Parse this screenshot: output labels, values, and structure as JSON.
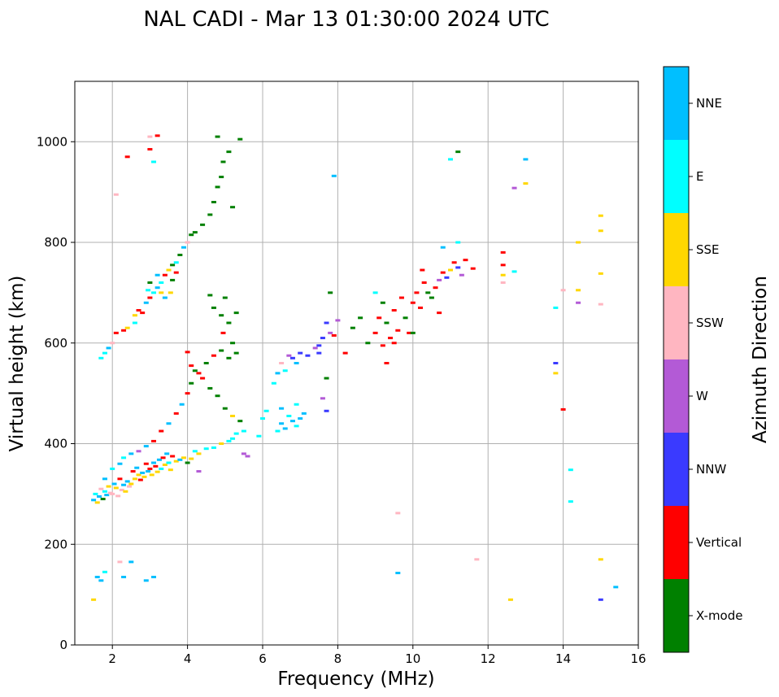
{
  "chart_data": {
    "type": "scatter",
    "title": "NAL CADI - Mar 13 01:30:00 2024 UTC",
    "xlabel": "Frequency (MHz)",
    "ylabel": "Virtual height (km)",
    "xlim": [
      1,
      16
    ],
    "ylim": [
      0,
      1120
    ],
    "xticks": [
      2,
      4,
      6,
      8,
      10,
      12,
      14,
      16
    ],
    "yticks": [
      0,
      200,
      400,
      600,
      800,
      1000
    ],
    "grid": true,
    "colorbar": {
      "label": "Azimuth Direction",
      "categories": [
        {
          "name": "X-mode",
          "color": "#008000"
        },
        {
          "name": "Vertical",
          "color": "#ff0000"
        },
        {
          "name": "NNW",
          "color": "#3a3aff"
        },
        {
          "name": "W",
          "color": "#b35ad6"
        },
        {
          "name": "SSW",
          "color": "#ffb6c1"
        },
        {
          "name": "SSE",
          "color": "#ffd700"
        },
        {
          "name": "E",
          "color": "#00ffff"
        },
        {
          "name": "NNE",
          "color": "#00bfff"
        }
      ]
    },
    "points": [
      [
        1.5,
        288,
        "NNE"
      ],
      [
        1.55,
        300,
        "E"
      ],
      [
        1.6,
        283,
        "SSE"
      ],
      [
        1.65,
        295,
        "NNE"
      ],
      [
        1.7,
        310,
        "SSW"
      ],
      [
        1.75,
        290,
        "X-mode"
      ],
      [
        1.8,
        305,
        "E"
      ],
      [
        1.85,
        298,
        "NNE"
      ],
      [
        1.9,
        315,
        "SSE"
      ],
      [
        1.95,
        302,
        "SSW"
      ],
      [
        2.0,
        300,
        "SSW"
      ],
      [
        2.05,
        320,
        "NNE"
      ],
      [
        2.1,
        312,
        "SSE"
      ],
      [
        2.15,
        296,
        "SSW"
      ],
      [
        2.2,
        330,
        "Vertical"
      ],
      [
        2.25,
        308,
        "SSW"
      ],
      [
        2.3,
        318,
        "NNE"
      ],
      [
        2.35,
        305,
        "SSE"
      ],
      [
        2.4,
        325,
        "NNE"
      ],
      [
        2.45,
        315,
        "SSW"
      ],
      [
        2.5,
        320,
        "SSE"
      ],
      [
        2.55,
        345,
        "Vertical"
      ],
      [
        2.6,
        330,
        "SSE"
      ],
      [
        2.65,
        352,
        "NNE"
      ],
      [
        2.7,
        338,
        "SSE"
      ],
      [
        2.75,
        328,
        "Vertical"
      ],
      [
        2.8,
        342,
        "NNE"
      ],
      [
        2.85,
        334,
        "SSE"
      ],
      [
        2.9,
        360,
        "Vertical"
      ],
      [
        2.95,
        345,
        "NNE"
      ],
      [
        3.0,
        350,
        "Vertical"
      ],
      [
        3.05,
        338,
        "SSE"
      ],
      [
        3.1,
        362,
        "NNE"
      ],
      [
        3.15,
        355,
        "Vertical"
      ],
      [
        3.2,
        344,
        "SSE"
      ],
      [
        3.25,
        368,
        "NNE"
      ],
      [
        3.3,
        350,
        "E"
      ],
      [
        3.35,
        372,
        "Vertical"
      ],
      [
        3.4,
        358,
        "SSE"
      ],
      [
        3.45,
        380,
        "NNE"
      ],
      [
        3.5,
        362,
        "E"
      ],
      [
        3.55,
        348,
        "SSE"
      ],
      [
        3.6,
        375,
        "Vertical"
      ],
      [
        3.7,
        365,
        "SSE"
      ],
      [
        3.8,
        368,
        "NNE"
      ],
      [
        3.9,
        372,
        "SSE"
      ],
      [
        4.0,
        362,
        "X-mode"
      ],
      [
        4.1,
        370,
        "SSE"
      ],
      [
        4.2,
        385,
        "E"
      ],
      [
        4.3,
        380,
        "SSE"
      ],
      [
        4.5,
        390,
        "E"
      ],
      [
        4.7,
        392,
        "E"
      ],
      [
        4.9,
        400,
        "SSE"
      ],
      [
        5.1,
        405,
        "E"
      ],
      [
        5.2,
        410,
        "E"
      ],
      [
        5.3,
        420,
        "E"
      ],
      [
        5.5,
        425,
        "E"
      ],
      [
        5.9,
        415,
        "E"
      ],
      [
        6.0,
        450,
        "E"
      ],
      [
        6.1,
        465,
        "E"
      ],
      [
        1.8,
        330,
        "NNE"
      ],
      [
        2.0,
        350,
        "E"
      ],
      [
        2.2,
        360,
        "NNE"
      ],
      [
        2.3,
        372,
        "E"
      ],
      [
        2.5,
        380,
        "NNE"
      ],
      [
        2.7,
        385,
        "W"
      ],
      [
        2.9,
        395,
        "NNE"
      ],
      [
        3.1,
        405,
        "Vertical"
      ],
      [
        3.3,
        425,
        "Vertical"
      ],
      [
        3.5,
        440,
        "NNE"
      ],
      [
        3.7,
        460,
        "Vertical"
      ],
      [
        3.85,
        478,
        "NNE"
      ],
      [
        4.0,
        500,
        "Vertical"
      ],
      [
        4.1,
        520,
        "X-mode"
      ],
      [
        4.3,
        540,
        "Vertical"
      ],
      [
        4.5,
        560,
        "X-mode"
      ],
      [
        4.7,
        575,
        "Vertical"
      ],
      [
        4.9,
        585,
        "X-mode"
      ],
      [
        5.1,
        570,
        "X-mode"
      ],
      [
        5.3,
        580,
        "X-mode"
      ],
      [
        4.0,
        582,
        "Vertical"
      ],
      [
        4.1,
        555,
        "Vertical"
      ],
      [
        4.2,
        545,
        "X-mode"
      ],
      [
        4.4,
        530,
        "Vertical"
      ],
      [
        4.6,
        510,
        "X-mode"
      ],
      [
        4.8,
        495,
        "X-mode"
      ],
      [
        5.0,
        470,
        "X-mode"
      ],
      [
        5.2,
        455,
        "SSE"
      ],
      [
        5.4,
        445,
        "X-mode"
      ],
      [
        4.9,
        655,
        "X-mode"
      ],
      [
        5.0,
        690,
        "X-mode"
      ],
      [
        5.1,
        640,
        "X-mode"
      ],
      [
        5.3,
        660,
        "X-mode"
      ],
      [
        4.95,
        620,
        "Vertical"
      ],
      [
        5.2,
        600,
        "X-mode"
      ],
      [
        4.6,
        695,
        "X-mode"
      ],
      [
        4.7,
        670,
        "X-mode"
      ],
      [
        5.5,
        380,
        "W"
      ],
      [
        5.6,
        375,
        "W"
      ],
      [
        4.3,
        345,
        "W"
      ],
      [
        1.7,
        570,
        "E"
      ],
      [
        1.8,
        580,
        "E"
      ],
      [
        1.9,
        590,
        "NNE"
      ],
      [
        2.0,
        600,
        "SSW"
      ],
      [
        2.1,
        620,
        "Vertical"
      ],
      [
        2.3,
        625,
        "Vertical"
      ],
      [
        2.4,
        630,
        "SSE"
      ],
      [
        2.6,
        640,
        "E"
      ],
      [
        2.8,
        660,
        "Vertical"
      ],
      [
        2.9,
        680,
        "NNE"
      ],
      [
        3.0,
        690,
        "Vertical"
      ],
      [
        3.1,
        700,
        "E"
      ],
      [
        3.2,
        710,
        "NNE"
      ],
      [
        3.3,
        720,
        "E"
      ],
      [
        3.4,
        735,
        "Vertical"
      ],
      [
        3.5,
        745,
        "SSE"
      ],
      [
        3.6,
        755,
        "X-mode"
      ],
      [
        3.7,
        760,
        "E"
      ],
      [
        3.8,
        775,
        "X-mode"
      ],
      [
        3.9,
        790,
        "NNE"
      ],
      [
        4.0,
        800,
        "SSW"
      ],
      [
        4.1,
        815,
        "X-mode"
      ],
      [
        4.2,
        820,
        "X-mode"
      ],
      [
        4.4,
        835,
        "X-mode"
      ],
      [
        4.6,
        855,
        "X-mode"
      ],
      [
        4.7,
        880,
        "X-mode"
      ],
      [
        4.8,
        910,
        "X-mode"
      ],
      [
        4.9,
        930,
        "X-mode"
      ],
      [
        4.95,
        960,
        "X-mode"
      ],
      [
        5.1,
        980,
        "X-mode"
      ],
      [
        3.0,
        720,
        "X-mode"
      ],
      [
        3.2,
        735,
        "NNE"
      ],
      [
        3.3,
        700,
        "SSE"
      ],
      [
        3.4,
        690,
        "NNE"
      ],
      [
        3.6,
        725,
        "X-mode"
      ],
      [
        3.7,
        740,
        "Vertical"
      ],
      [
        2.6,
        655,
        "SSE"
      ],
      [
        2.7,
        665,
        "Vertical"
      ],
      [
        2.95,
        705,
        "E"
      ],
      [
        3.55,
        700,
        "SSE"
      ],
      [
        6.4,
        425,
        "E"
      ],
      [
        6.5,
        440,
        "NNE"
      ],
      [
        6.6,
        430,
        "NNE"
      ],
      [
        6.7,
        455,
        "E"
      ],
      [
        6.8,
        445,
        "NNE"
      ],
      [
        6.9,
        435,
        "E"
      ],
      [
        7.0,
        450,
        "NNE"
      ],
      [
        7.1,
        460,
        "NNE"
      ],
      [
        6.5,
        470,
        "NNE"
      ],
      [
        6.9,
        478,
        "E"
      ],
      [
        6.3,
        520,
        "E"
      ],
      [
        6.4,
        540,
        "NNE"
      ],
      [
        6.5,
        560,
        "SSW"
      ],
      [
        6.6,
        545,
        "E"
      ],
      [
        6.7,
        575,
        "W"
      ],
      [
        6.8,
        570,
        "NNW"
      ],
      [
        6.9,
        560,
        "NNE"
      ],
      [
        7.0,
        580,
        "NNW"
      ],
      [
        7.2,
        575,
        "NNW"
      ],
      [
        7.4,
        590,
        "W"
      ],
      [
        7.5,
        595,
        "NNW"
      ],
      [
        7.6,
        610,
        "NNW"
      ],
      [
        7.7,
        640,
        "NNW"
      ],
      [
        7.8,
        620,
        "W"
      ],
      [
        7.9,
        615,
        "Vertical"
      ],
      [
        8.0,
        645,
        "W"
      ],
      [
        7.5,
        580,
        "NNW"
      ],
      [
        7.7,
        530,
        "X-mode"
      ],
      [
        7.6,
        490,
        "W"
      ],
      [
        7.7,
        465,
        "NNW"
      ],
      [
        7.8,
        700,
        "X-mode"
      ],
      [
        8.2,
        580,
        "Vertical"
      ],
      [
        8.4,
        630,
        "X-mode"
      ],
      [
        8.6,
        650,
        "X-mode"
      ],
      [
        8.8,
        600,
        "X-mode"
      ],
      [
        9.0,
        620,
        "Vertical"
      ],
      [
        9.1,
        650,
        "Vertical"
      ],
      [
        9.2,
        595,
        "Vertical"
      ],
      [
        9.3,
        640,
        "X-mode"
      ],
      [
        9.4,
        610,
        "Vertical"
      ],
      [
        9.5,
        665,
        "Vertical"
      ],
      [
        9.6,
        625,
        "Vertical"
      ],
      [
        9.7,
        690,
        "Vertical"
      ],
      [
        9.8,
        650,
        "X-mode"
      ],
      [
        9.9,
        620,
        "Vertical"
      ],
      [
        10.0,
        680,
        "Vertical"
      ],
      [
        10.1,
        700,
        "Vertical"
      ],
      [
        10.2,
        670,
        "Vertical"
      ],
      [
        10.3,
        720,
        "Vertical"
      ],
      [
        10.5,
        690,
        "X-mode"
      ],
      [
        10.6,
        710,
        "Vertical"
      ],
      [
        10.7,
        725,
        "W"
      ],
      [
        10.8,
        740,
        "Vertical"
      ],
      [
        10.9,
        730,
        "NNW"
      ],
      [
        11.0,
        745,
        "SSE"
      ],
      [
        11.1,
        760,
        "Vertical"
      ],
      [
        11.2,
        750,
        "NNW"
      ],
      [
        11.3,
        735,
        "W"
      ],
      [
        11.4,
        765,
        "Vertical"
      ],
      [
        11.6,
        748,
        "Vertical"
      ],
      [
        9.0,
        700,
        "E"
      ],
      [
        9.2,
        680,
        "X-mode"
      ],
      [
        9.5,
        600,
        "Vertical"
      ],
      [
        10.0,
        620,
        "X-mode"
      ],
      [
        10.4,
        700,
        "X-mode"
      ],
      [
        10.8,
        790,
        "NNE"
      ],
      [
        11.2,
        800,
        "E"
      ],
      [
        9.3,
        560,
        "Vertical"
      ],
      [
        10.7,
        660,
        "Vertical"
      ],
      [
        10.25,
        745,
        "Vertical"
      ],
      [
        12.4,
        780,
        "Vertical"
      ],
      [
        12.4,
        755,
        "Vertical"
      ],
      [
        12.4,
        735,
        "SSE"
      ],
      [
        12.4,
        720,
        "SSW"
      ],
      [
        12.7,
        742,
        "E"
      ],
      [
        12.7,
        908,
        "W"
      ],
      [
        13.0,
        965,
        "NNE"
      ],
      [
        13.0,
        917,
        "SSE"
      ],
      [
        13.8,
        670,
        "E"
      ],
      [
        13.8,
        560,
        "NNW"
      ],
      [
        13.8,
        540,
        "SSE"
      ],
      [
        14.0,
        705,
        "SSW"
      ],
      [
        14.0,
        468,
        "Vertical"
      ],
      [
        14.2,
        348,
        "E"
      ],
      [
        14.2,
        285,
        "E"
      ],
      [
        14.4,
        800,
        "SSE"
      ],
      [
        14.4,
        705,
        "SSE"
      ],
      [
        14.4,
        680,
        "W"
      ],
      [
        15.0,
        853,
        "SSE"
      ],
      [
        15.0,
        823,
        "SSE"
      ],
      [
        15.0,
        738,
        "SSE"
      ],
      [
        15.0,
        677,
        "SSW"
      ],
      [
        15.0,
        170,
        "SSE"
      ],
      [
        15.0,
        90,
        "NNW"
      ],
      [
        15.4,
        115,
        "NNE"
      ],
      [
        12.6,
        90,
        "SSE"
      ],
      [
        11.7,
        170,
        "SSW"
      ],
      [
        11.2,
        980,
        "X-mode"
      ],
      [
        11.0,
        965,
        "E"
      ],
      [
        9.6,
        262,
        "SSW"
      ],
      [
        9.6,
        143,
        "NNE"
      ],
      [
        7.9,
        932,
        "NNE"
      ],
      [
        1.6,
        135,
        "NNE"
      ],
      [
        1.7,
        128,
        "NNE"
      ],
      [
        1.8,
        145,
        "E"
      ],
      [
        2.2,
        165,
        "SSW"
      ],
      [
        2.3,
        135,
        "NNE"
      ],
      [
        2.5,
        165,
        "NNE"
      ],
      [
        2.9,
        128,
        "NNE"
      ],
      [
        3.1,
        135,
        "NNE"
      ],
      [
        1.5,
        90,
        "SSE"
      ],
      [
        2.1,
        895,
        "SSW"
      ],
      [
        3.0,
        1010,
        "SSW"
      ],
      [
        3.2,
        1012,
        "Vertical"
      ],
      [
        3.0,
        985,
        "Vertical"
      ],
      [
        2.4,
        970,
        "Vertical"
      ],
      [
        3.1,
        960,
        "E"
      ],
      [
        4.8,
        1010,
        "X-mode"
      ],
      [
        5.4,
        1005,
        "X-mode"
      ],
      [
        5.2,
        870,
        "X-mode"
      ]
    ]
  }
}
